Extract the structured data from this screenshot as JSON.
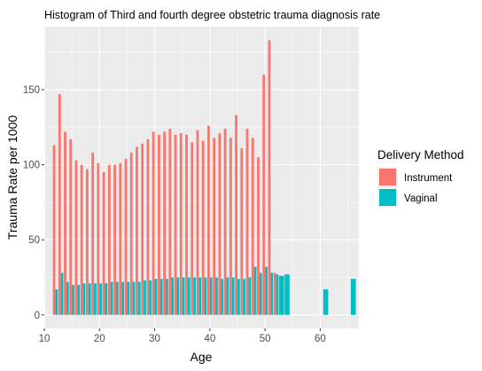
{
  "chart_data": {
    "type": "bar",
    "title": "Histogram of Third and fourth degree obstetric trauma diagnosis rate",
    "xlabel": "Age",
    "ylabel": "Trauma Rate per 1000",
    "xlim": [
      10,
      67
    ],
    "ylim": [
      -9,
      192
    ],
    "x_ticks": [
      10,
      20,
      30,
      40,
      50,
      60
    ],
    "y_ticks": [
      0,
      50,
      100,
      150
    ],
    "grid": true,
    "legend": {
      "title": "Delivery Method",
      "position": "right"
    },
    "series": [
      {
        "name": "Instrument",
        "color": "#F8766D",
        "x": [
          12,
          13,
          14,
          15,
          16,
          17,
          18,
          19,
          20,
          21,
          22,
          23,
          24,
          25,
          26,
          27,
          28,
          29,
          30,
          31,
          32,
          33,
          34,
          35,
          36,
          37,
          38,
          39,
          40,
          41,
          42,
          43,
          44,
          45,
          46,
          47,
          48,
          49,
          50,
          51,
          52
        ],
        "values": [
          113,
          147,
          122,
          117,
          103,
          100,
          97,
          108,
          101,
          95,
          100,
          100,
          101,
          104,
          108,
          112,
          114,
          117,
          122,
          120,
          122,
          124,
          120,
          121,
          120,
          115,
          123,
          116,
          126,
          118,
          121,
          124,
          118,
          133,
          111,
          124,
          118,
          105,
          160,
          183,
          28
        ]
      },
      {
        "name": "Vaginal",
        "color": "#00BFC4",
        "x": [
          12,
          13,
          14,
          15,
          16,
          17,
          18,
          19,
          20,
          21,
          22,
          23,
          24,
          25,
          26,
          27,
          28,
          29,
          30,
          31,
          32,
          33,
          34,
          35,
          36,
          37,
          38,
          39,
          40,
          41,
          42,
          43,
          44,
          45,
          46,
          47,
          48,
          49,
          50,
          51,
          52,
          53,
          54,
          61,
          66
        ],
        "values": [
          17,
          28,
          22,
          20,
          20,
          21,
          21,
          21,
          21,
          21,
          22,
          22,
          22,
          22,
          22,
          22,
          23,
          23,
          24,
          24,
          24,
          25,
          25,
          25,
          25,
          25,
          25,
          25,
          25,
          25,
          24,
          25,
          25,
          24,
          24,
          25,
          32,
          28,
          32,
          28,
          27,
          26,
          27,
          17,
          24
        ]
      }
    ]
  }
}
